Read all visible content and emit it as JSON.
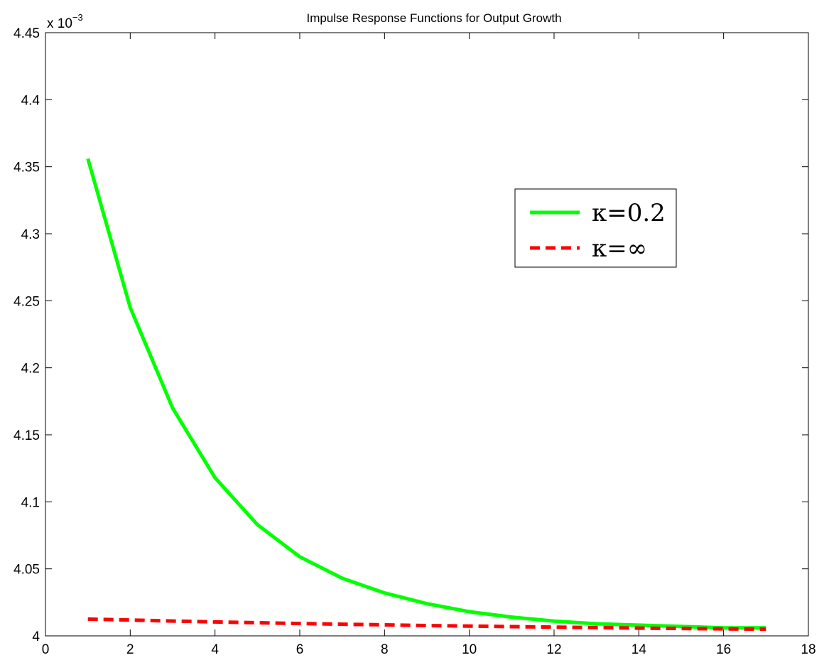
{
  "chart_data": {
    "type": "line",
    "title": "Impulse Response Functions for Output Growth",
    "xlabel": "",
    "ylabel": "",
    "y_multiplier_label": "x 10",
    "y_multiplier_exponent": "−3",
    "xlim": [
      0,
      18
    ],
    "ylim": [
      4.0,
      4.45
    ],
    "x_ticks": [
      0,
      2,
      4,
      6,
      8,
      10,
      12,
      14,
      16,
      18
    ],
    "x_tick_labels": [
      "0",
      "2",
      "4",
      "6",
      "8",
      "10",
      "12",
      "14",
      "16",
      "18"
    ],
    "y_ticks": [
      4.0,
      4.05,
      4.1,
      4.15,
      4.2,
      4.25,
      4.3,
      4.35,
      4.4,
      4.45
    ],
    "y_tick_labels": [
      "4",
      "4.05",
      "4.1",
      "4.15",
      "4.2",
      "4.25",
      "4.3",
      "4.35",
      "4.4",
      "4.45"
    ],
    "grid": false,
    "legend_position": "top-right",
    "series": [
      {
        "name": "κ=0.2",
        "color": "#00ff00",
        "style": "solid",
        "x": [
          1,
          2,
          3,
          4,
          5,
          6,
          7,
          8,
          9,
          10,
          11,
          12,
          13,
          14,
          15,
          16,
          17
        ],
        "values": [
          4.356,
          4.245,
          4.17,
          4.118,
          4.083,
          4.059,
          4.043,
          4.032,
          4.024,
          4.018,
          4.014,
          4.011,
          4.009,
          4.008,
          4.007,
          4.006,
          4.006
        ]
      },
      {
        "name": "κ=∞",
        "color": "#ff0000",
        "style": "dashed",
        "x": [
          1,
          2,
          3,
          4,
          5,
          6,
          7,
          8,
          9,
          10,
          11,
          12,
          13,
          14,
          15,
          16,
          17
        ],
        "values": [
          4.0125,
          4.0118,
          4.0111,
          4.0104,
          4.0098,
          4.0092,
          4.0087,
          4.0082,
          4.0077,
          4.0073,
          4.0069,
          4.0065,
          4.0062,
          4.0058,
          4.0055,
          4.0052,
          4.005
        ]
      }
    ]
  }
}
